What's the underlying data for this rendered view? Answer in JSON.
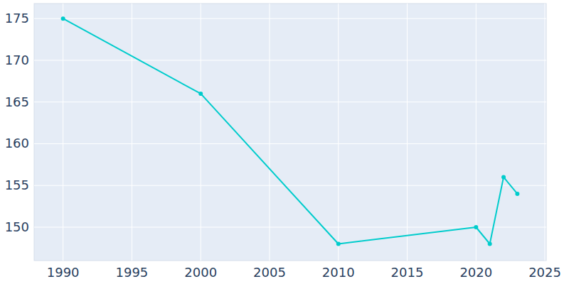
{
  "chart_data": {
    "type": "line",
    "x": [
      1990,
      2000,
      2010,
      2020,
      2021,
      2022,
      2023
    ],
    "values": [
      175,
      166,
      148,
      150,
      148,
      156,
      154
    ],
    "color": "#00cccc",
    "marker": "circle",
    "xlim": [
      1987.9,
      2025.1
    ],
    "xticks": [
      1990,
      1995,
      2000,
      2005,
      2010,
      2015,
      2020,
      2025
    ],
    "ylim": [
      146,
      176.8
    ],
    "yticks": [
      150,
      155,
      160,
      165,
      170,
      175
    ],
    "grid": true
  }
}
